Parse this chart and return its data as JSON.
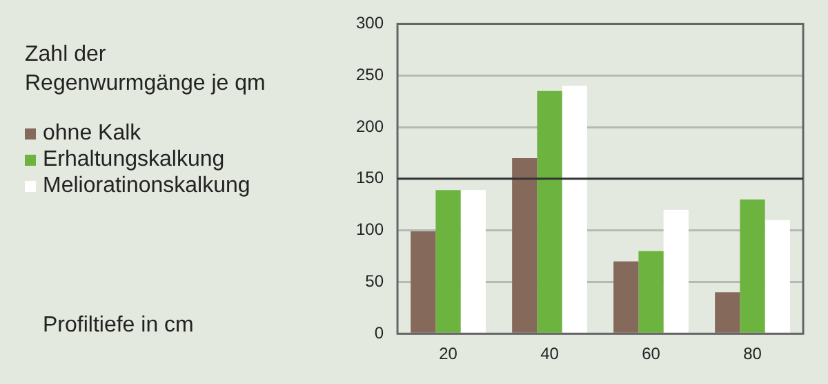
{
  "chart_data": {
    "type": "bar",
    "ylabel": "Zahl der Regenwurmgänge je qm",
    "annotations": [
      "Profiltiefe in cm"
    ],
    "categories": [
      "20",
      "40",
      "60",
      "80"
    ],
    "series": [
      {
        "name": "ohne Kalk",
        "color": "#85695a",
        "values": [
          99,
          170,
          70,
          40
        ]
      },
      {
        "name": "Erhaltungskalkung",
        "color": "#6db33f",
        "values": [
          139,
          235,
          80,
          130
        ]
      },
      {
        "name": "Melioratinonskalkung",
        "color": "#ffffff",
        "values": [
          139,
          240,
          120,
          110
        ]
      }
    ],
    "ylim": [
      0,
      300
    ],
    "yticks": [
      0,
      50,
      100,
      150,
      200,
      250,
      300
    ],
    "grid": "y",
    "legend": "left",
    "ref_lines": [
      {
        "axis": "y",
        "value": 150,
        "color": "#333333"
      }
    ]
  }
}
